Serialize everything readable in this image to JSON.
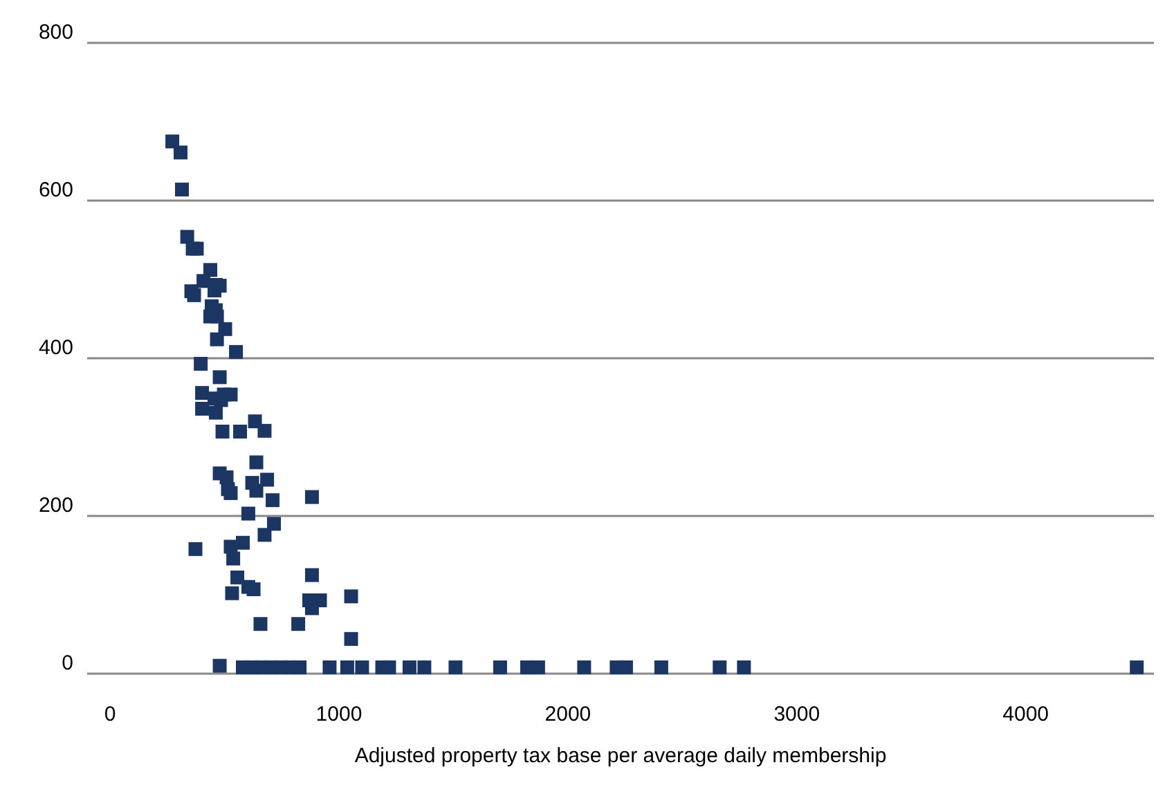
{
  "chart_data": {
    "type": "scatter",
    "xlabel": "Adjusted property tax base per average daily membership",
    "x": [
      272,
      308,
      314,
      337,
      361,
      379,
      438,
      408,
      462,
      479,
      355,
      367,
      456,
      444,
      462,
      438,
      467,
      503,
      467,
      550,
      396,
      479,
      402,
      497,
      527,
      456,
      485,
      402,
      462,
      491,
      568,
      633,
      675,
      639,
      479,
      509,
      515,
      527,
      621,
      686,
      639,
      710,
      882,
      604,
      716,
      675,
      373,
      527,
      580,
      538,
      556,
      533,
      604,
      627,
      882,
      870,
      917,
      882,
      1053,
      657,
      822,
      1053,
      479,
      580,
      621,
      663,
      704,
      746,
      787,
      828,
      959,
      1036,
      1101,
      1189,
      1219,
      1308,
      1373,
      1509,
      1704,
      1822,
      1870,
      2071,
      2213,
      2254,
      2408,
      2663,
      2769,
      4485
    ],
    "series": [
      {
        "color": "#1c3664",
        "values": [
          675,
          661,
          614,
          554,
          539,
          539,
          512,
          498,
          493,
          492,
          485,
          480,
          486,
          466,
          461,
          453,
          453,
          437,
          424,
          408,
          393,
          376,
          356,
          354,
          354,
          349,
          347,
          336,
          331,
          307,
          307,
          320,
          308,
          268,
          254,
          249,
          234,
          229,
          242,
          246,
          232,
          220,
          224,
          203,
          190,
          176,
          158,
          161,
          166,
          146,
          122,
          102,
          110,
          107,
          125,
          93,
          93,
          83,
          98,
          63,
          63,
          44,
          10,
          8,
          8,
          8,
          8,
          8,
          8,
          8,
          8,
          8,
          8,
          8,
          8,
          8,
          8,
          8,
          8,
          8,
          8,
          8,
          8,
          8,
          8,
          8,
          8,
          8
        ]
      }
    ],
    "xlim": [
      -100,
      4560
    ],
    "xticks": [
      0,
      1000,
      2000,
      3000,
      4000
    ],
    "ylim": [
      0,
      800
    ],
    "yticks": [
      0,
      200,
      400,
      600,
      800
    ],
    "grid": "y",
    "marker": "square"
  }
}
